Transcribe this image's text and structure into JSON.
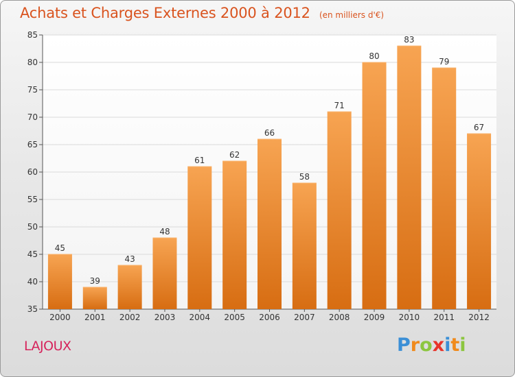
{
  "chart_data": {
    "type": "bar",
    "title": "Achats et Charges Externes 2000 à 2012",
    "subtitle": "(en milliers d'€)",
    "categories": [
      "2000",
      "2001",
      "2002",
      "2003",
      "2004",
      "2005",
      "2006",
      "2007",
      "2008",
      "2009",
      "2010",
      "2011",
      "2012"
    ],
    "values": [
      45,
      39,
      43,
      48,
      61,
      62,
      66,
      58,
      71,
      80,
      83,
      79,
      67
    ],
    "ylim": [
      35,
      85
    ],
    "yticks": [
      35,
      40,
      45,
      50,
      55,
      60,
      65,
      70,
      75,
      80,
      85
    ],
    "xlabel": "",
    "ylabel": "",
    "grid": true,
    "bar_color": "#f0902e"
  },
  "commune": "LAJOUX",
  "logo": {
    "text": "Proxiti",
    "letters": [
      {
        "ch": "P",
        "color": "#3b8fd6"
      },
      {
        "ch": "r",
        "color": "#f08a1c"
      },
      {
        "ch": "o",
        "color": "#8cc63f"
      },
      {
        "ch": "x",
        "color": "#e8342a"
      },
      {
        "ch": "i",
        "color": "#3b8fd6"
      },
      {
        "ch": "t",
        "color": "#f08a1c"
      },
      {
        "ch": "i",
        "color": "#8cc63f"
      }
    ]
  }
}
